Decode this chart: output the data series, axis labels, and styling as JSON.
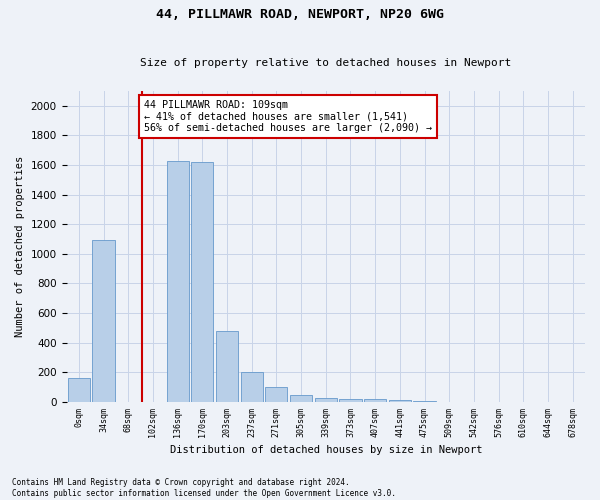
{
  "title_line1": "44, PILLMAWR ROAD, NEWPORT, NP20 6WG",
  "title_line2": "Size of property relative to detached houses in Newport",
  "xlabel": "Distribution of detached houses by size in Newport",
  "ylabel": "Number of detached properties",
  "categories": [
    "0sqm",
    "34sqm",
    "68sqm",
    "102sqm",
    "136sqm",
    "170sqm",
    "203sqm",
    "237sqm",
    "271sqm",
    "305sqm",
    "339sqm",
    "373sqm",
    "407sqm",
    "441sqm",
    "475sqm",
    "509sqm",
    "542sqm",
    "576sqm",
    "610sqm",
    "644sqm",
    "678sqm"
  ],
  "values": [
    160,
    1090,
    0,
    0,
    1625,
    1620,
    480,
    200,
    100,
    45,
    28,
    20,
    20,
    15,
    5,
    0,
    0,
    0,
    0,
    0,
    0
  ],
  "bar_color": "#b8cfe8",
  "bar_edge_color": "#6699cc",
  "grid_color": "#c8d4e8",
  "vline_index": 3,
  "vline_color": "#cc0000",
  "annotation_text": "44 PILLMAWR ROAD: 109sqm\n← 41% of detached houses are smaller (1,541)\n56% of semi-detached houses are larger (2,090) →",
  "annotation_box_color": "#ffffff",
  "annotation_box_edge": "#cc0000",
  "ylim": [
    0,
    2100
  ],
  "yticks": [
    0,
    200,
    400,
    600,
    800,
    1000,
    1200,
    1400,
    1600,
    1800,
    2000
  ],
  "footnote1": "Contains HM Land Registry data © Crown copyright and database right 2024.",
  "footnote2": "Contains public sector information licensed under the Open Government Licence v3.0.",
  "bg_color": "#eef2f8"
}
